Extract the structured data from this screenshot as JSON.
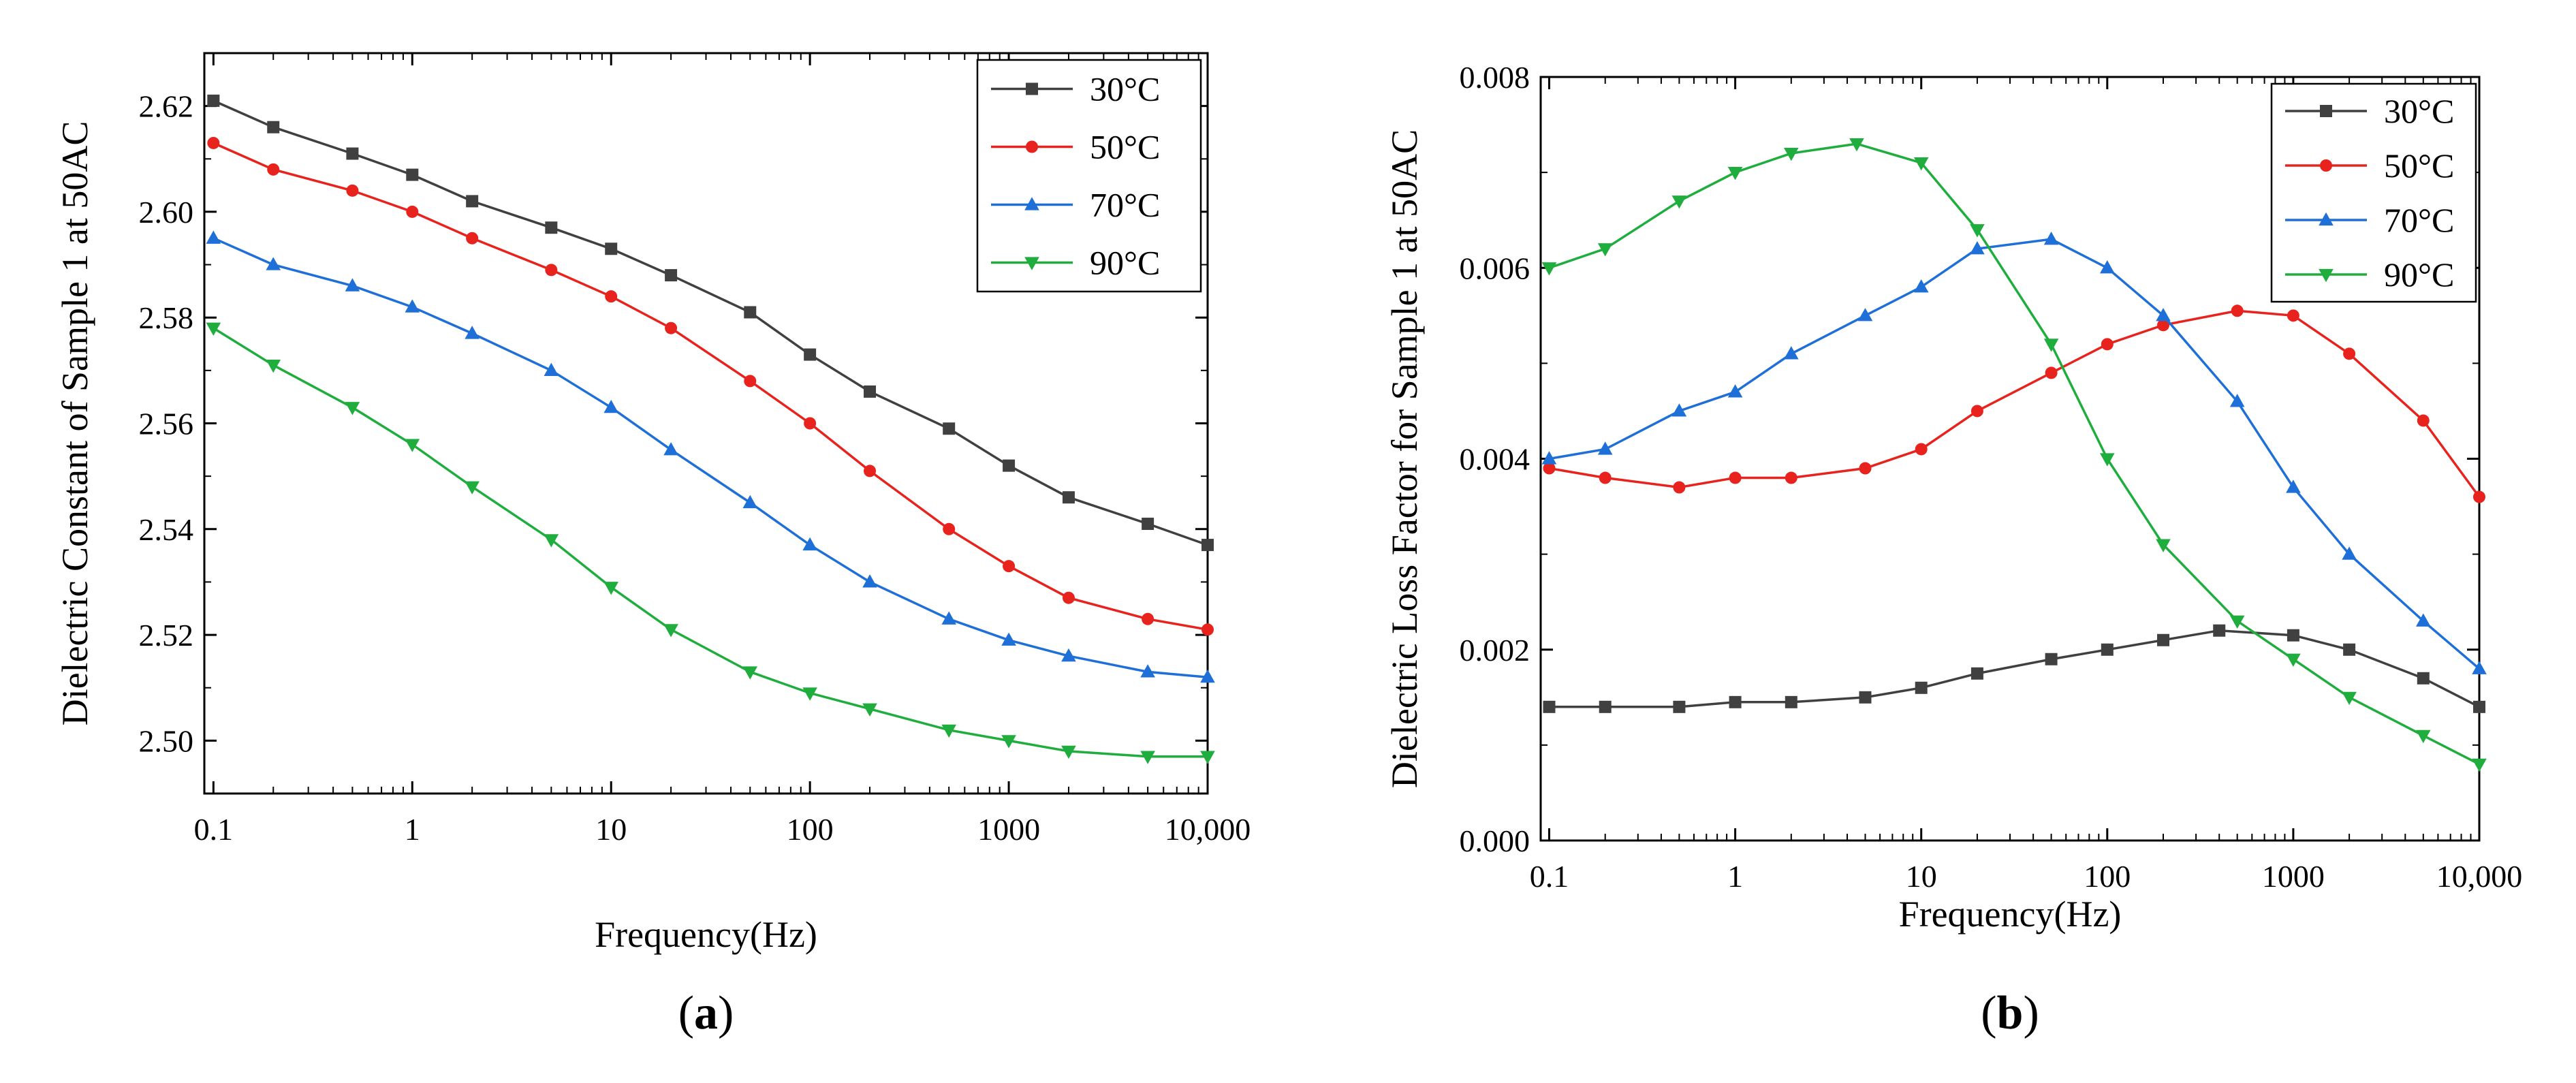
{
  "panels": [
    {
      "label_paren_open": "(",
      "label_letter": "a",
      "label_paren_close": ")",
      "chart_data": {
        "type": "line",
        "xscale": "log",
        "title": "",
        "xlabel": "Frequency(Hz)",
        "ylabel": "Dielectric Constant of Sample 1 at 50AC",
        "xlim": [
          0.09,
          10000
        ],
        "ylim": [
          2.49,
          2.63
        ],
        "x_ticks": [
          0.1,
          1,
          10,
          100,
          1000,
          10000
        ],
        "x_tick_labels": [
          "0.1",
          "1",
          "10",
          "100",
          "1000",
          "10,000"
        ],
        "y_ticks": [
          2.5,
          2.52,
          2.54,
          2.56,
          2.58,
          2.6,
          2.62
        ],
        "y_tick_labels": [
          "2.50",
          "2.52",
          "2.54",
          "2.56",
          "2.58",
          "2.60",
          "2.62"
        ],
        "legend_position": "top-right",
        "series": [
          {
            "name": "30°C",
            "color": "#404040",
            "marker": "square",
            "points": [
              [
                0.1,
                2.621
              ],
              [
                0.2,
                2.616
              ],
              [
                0.5,
                2.611
              ],
              [
                1,
                2.607
              ],
              [
                2,
                2.602
              ],
              [
                5,
                2.597
              ],
              [
                10,
                2.593
              ],
              [
                20,
                2.588
              ],
              [
                50,
                2.581
              ],
              [
                100,
                2.573
              ],
              [
                200,
                2.566
              ],
              [
                500,
                2.559
              ],
              [
                1000,
                2.552
              ],
              [
                2000,
                2.546
              ],
              [
                5000,
                2.541
              ],
              [
                10000,
                2.537
              ]
            ]
          },
          {
            "name": "50°C",
            "color": "#e8221c",
            "marker": "circle",
            "points": [
              [
                0.1,
                2.613
              ],
              [
                0.2,
                2.608
              ],
              [
                0.5,
                2.604
              ],
              [
                1,
                2.6
              ],
              [
                2,
                2.595
              ],
              [
                5,
                2.589
              ],
              [
                10,
                2.584
              ],
              [
                20,
                2.578
              ],
              [
                50,
                2.568
              ],
              [
                100,
                2.56
              ],
              [
                200,
                2.551
              ],
              [
                500,
                2.54
              ],
              [
                1000,
                2.533
              ],
              [
                2000,
                2.527
              ],
              [
                5000,
                2.523
              ],
              [
                10000,
                2.521
              ]
            ]
          },
          {
            "name": "70°C",
            "color": "#1f6fd8",
            "marker": "triangle-up",
            "points": [
              [
                0.1,
                2.595
              ],
              [
                0.2,
                2.59
              ],
              [
                0.5,
                2.586
              ],
              [
                1,
                2.582
              ],
              [
                2,
                2.577
              ],
              [
                5,
                2.57
              ],
              [
                10,
                2.563
              ],
              [
                20,
                2.555
              ],
              [
                50,
                2.545
              ],
              [
                100,
                2.537
              ],
              [
                200,
                2.53
              ],
              [
                500,
                2.523
              ],
              [
                1000,
                2.519
              ],
              [
                2000,
                2.516
              ],
              [
                5000,
                2.513
              ],
              [
                10000,
                2.512
              ]
            ]
          },
          {
            "name": "90°C",
            "color": "#1fae3e",
            "marker": "triangle-down",
            "points": [
              [
                0.1,
                2.578
              ],
              [
                0.2,
                2.571
              ],
              [
                0.5,
                2.563
              ],
              [
                1,
                2.556
              ],
              [
                2,
                2.548
              ],
              [
                5,
                2.538
              ],
              [
                10,
                2.529
              ],
              [
                20,
                2.521
              ],
              [
                50,
                2.513
              ],
              [
                100,
                2.509
              ],
              [
                200,
                2.506
              ],
              [
                500,
                2.502
              ],
              [
                1000,
                2.5
              ],
              [
                2000,
                2.498
              ],
              [
                5000,
                2.497
              ],
              [
                10000,
                2.497
              ]
            ]
          }
        ]
      }
    },
    {
      "label_paren_open": "(",
      "label_letter": "b",
      "label_paren_close": ")",
      "chart_data": {
        "type": "line",
        "xscale": "log",
        "title": "",
        "xlabel": "Frequency(Hz)",
        "ylabel": "Dielectric Loss Factor for Sample 1 at 50AC",
        "xlim": [
          0.09,
          10000
        ],
        "ylim": [
          0,
          0.008
        ],
        "x_ticks": [
          0.1,
          1,
          10,
          100,
          1000,
          10000
        ],
        "x_tick_labels": [
          "0.1",
          "1",
          "10",
          "100",
          "1000",
          "10,000"
        ],
        "y_ticks": [
          0,
          0.002,
          0.004,
          0.006,
          0.008
        ],
        "y_tick_labels": [
          "0.000",
          "0.002",
          "0.004",
          "0.006",
          "0.008"
        ],
        "legend_position": "top-right",
        "series": [
          {
            "name": "30°C",
            "color": "#404040",
            "marker": "square",
            "points": [
              [
                0.1,
                0.0014
              ],
              [
                0.2,
                0.0014
              ],
              [
                0.5,
                0.0014
              ],
              [
                1,
                0.00145
              ],
              [
                2,
                0.00145
              ],
              [
                5,
                0.0015
              ],
              [
                10,
                0.0016
              ],
              [
                20,
                0.00175
              ],
              [
                50,
                0.0019
              ],
              [
                100,
                0.002
              ],
              [
                200,
                0.0021
              ],
              [
                400,
                0.0022
              ],
              [
                1000,
                0.00215
              ],
              [
                2000,
                0.002
              ],
              [
                5000,
                0.0017
              ],
              [
                10000,
                0.0014
              ]
            ]
          },
          {
            "name": "50°C",
            "color": "#e8221c",
            "marker": "circle",
            "points": [
              [
                0.1,
                0.0039
              ],
              [
                0.2,
                0.0038
              ],
              [
                0.5,
                0.0037
              ],
              [
                1,
                0.0038
              ],
              [
                2,
                0.0038
              ],
              [
                5,
                0.0039
              ],
              [
                10,
                0.0041
              ],
              [
                20,
                0.0045
              ],
              [
                50,
                0.0049
              ],
              [
                100,
                0.0052
              ],
              [
                200,
                0.0054
              ],
              [
                500,
                0.00555
              ],
              [
                1000,
                0.0055
              ],
              [
                2000,
                0.0051
              ],
              [
                5000,
                0.0044
              ],
              [
                10000,
                0.0036
              ]
            ]
          },
          {
            "name": "70°C",
            "color": "#1f6fd8",
            "marker": "triangle-up",
            "points": [
              [
                0.1,
                0.004
              ],
              [
                0.2,
                0.0041
              ],
              [
                0.5,
                0.0045
              ],
              [
                1,
                0.0047
              ],
              [
                2,
                0.0051
              ],
              [
                5,
                0.0055
              ],
              [
                10,
                0.0058
              ],
              [
                20,
                0.0062
              ],
              [
                50,
                0.0063
              ],
              [
                100,
                0.006
              ],
              [
                200,
                0.0055
              ],
              [
                500,
                0.0046
              ],
              [
                1000,
                0.0037
              ],
              [
                2000,
                0.003
              ],
              [
                5000,
                0.0023
              ],
              [
                10000,
                0.0018
              ]
            ]
          },
          {
            "name": "90°C",
            "color": "#1fae3e",
            "marker": "triangle-down",
            "points": [
              [
                0.1,
                0.006
              ],
              [
                0.2,
                0.0062
              ],
              [
                0.5,
                0.0067
              ],
              [
                1,
                0.007
              ],
              [
                2,
                0.0072
              ],
              [
                4.5,
                0.0073
              ],
              [
                10,
                0.0071
              ],
              [
                20,
                0.0064
              ],
              [
                50,
                0.0052
              ],
              [
                100,
                0.004
              ],
              [
                200,
                0.0031
              ],
              [
                500,
                0.0023
              ],
              [
                1000,
                0.0019
              ],
              [
                2000,
                0.0015
              ],
              [
                5000,
                0.0011
              ],
              [
                10000,
                0.0008
              ]
            ]
          }
        ]
      }
    }
  ]
}
